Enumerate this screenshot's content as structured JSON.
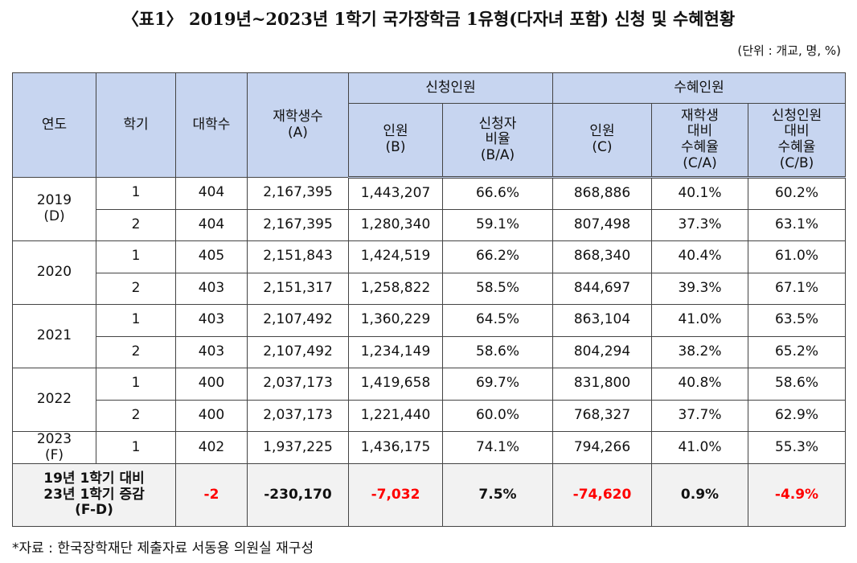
{
  "header": {
    "title": "〈표1〉 2019년~2023년 1학기 국가장학금 1유형(다자녀 포함) 신청 및 수혜현황",
    "unit": "(단위 : 개교, 명, %)"
  },
  "table": {
    "head_top": [
      "연도",
      "학기",
      "대학수",
      "재학생수\n(A)",
      "신청인원",
      "수혜인원"
    ],
    "head_sub": [
      "인원\n(B)",
      "신청자\n비율\n(B/A)",
      "인원\n(C)",
      "재학생\n대비\n수혜율\n(C/A)",
      "신청인원\n대비\n수혜율\n(C/B)"
    ],
    "groups": [
      {
        "year": "2019\n(D)",
        "rows": [
          [
            "1",
            "404",
            "2,167,395",
            "1,443,207",
            "66.6%",
            "868,886",
            "40.1%",
            "60.2%"
          ],
          [
            "2",
            "404",
            "2,167,395",
            "1,280,340",
            "59.1%",
            "807,498",
            "37.3%",
            "63.1%"
          ]
        ]
      },
      {
        "year": "2020",
        "rows": [
          [
            "1",
            "405",
            "2,151,843",
            "1,424,519",
            "66.2%",
            "868,340",
            "40.4%",
            "61.0%"
          ],
          [
            "2",
            "403",
            "2,151,317",
            "1,258,822",
            "58.5%",
            "844,697",
            "39.3%",
            "67.1%"
          ]
        ]
      },
      {
        "year": "2021",
        "rows": [
          [
            "1",
            "403",
            "2,107,492",
            "1,360,229",
            "64.5%",
            "863,104",
            "41.0%",
            "63.5%"
          ],
          [
            "2",
            "403",
            "2,107,492",
            "1,234,149",
            "58.6%",
            "804,294",
            "38.2%",
            "65.2%"
          ]
        ]
      },
      {
        "year": "2022",
        "rows": [
          [
            "1",
            "400",
            "2,037,173",
            "1,419,658",
            "69.7%",
            "831,800",
            "40.8%",
            "58.6%"
          ],
          [
            "2",
            "400",
            "2,037,173",
            "1,221,440",
            "60.0%",
            "768,327",
            "37.7%",
            "62.9%"
          ]
        ]
      },
      {
        "year": "2023\n(F)",
        "rows": [
          [
            "1",
            "402",
            "1,937,225",
            "1,436,175",
            "74.1%",
            "794,266",
            "41.0%",
            "55.3%"
          ]
        ]
      }
    ],
    "summary": {
      "label": "19년 1학기 대비\n23년 1학기 증감\n(F-D)",
      "values": [
        "-2",
        "-230,170",
        "-7,032",
        "7.5%",
        "-74,620",
        "0.9%",
        "-4.9%"
      ]
    }
  },
  "footnote": "*자료 : 한국장학재단 제출자료 서동용 의원실 재구성"
}
